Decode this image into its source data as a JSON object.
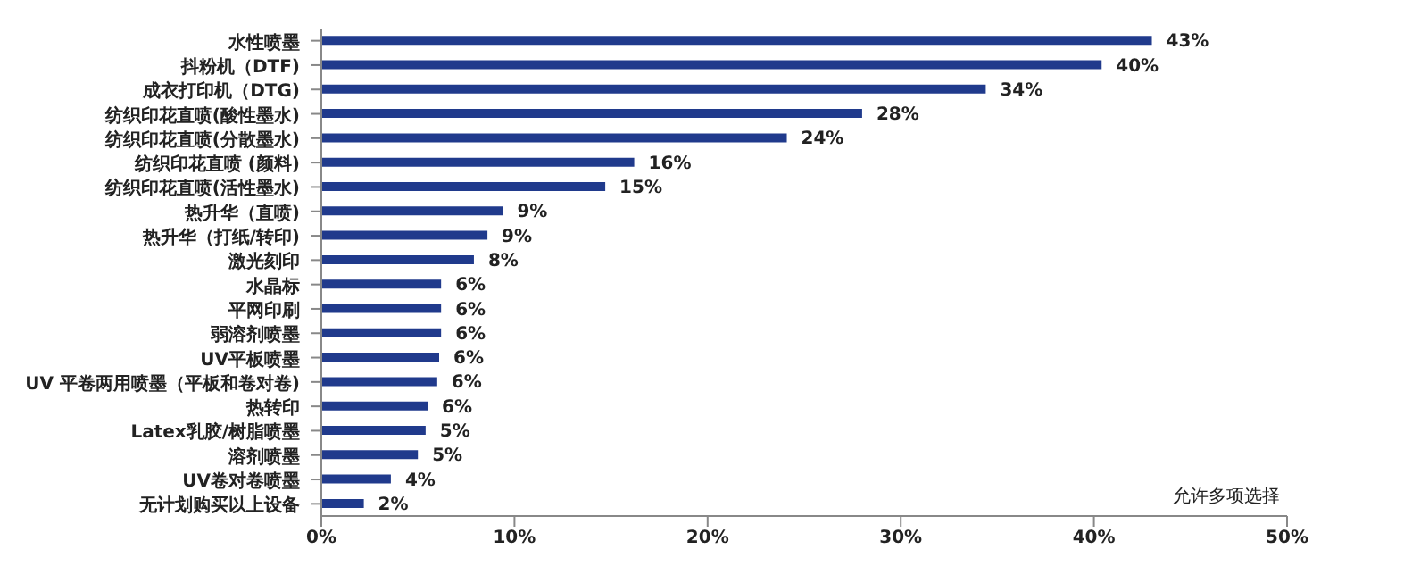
{
  "chart_data": {
    "type": "bar",
    "orientation": "horizontal",
    "categories": [
      "水性喷墨",
      "抖粉机（DTF)",
      "成衣打印机（DTG)",
      "纺织印花直喷(酸性墨水)",
      "纺织印花直喷(分散墨水)",
      "纺织印花直喷 (颜料)",
      "纺织印花直喷(活性墨水)",
      "热升华（直喷)",
      "热升华（打纸/转印)",
      "激光刻印",
      "水晶标",
      "平网印刷",
      "弱溶剂喷墨",
      "UV平板喷墨",
      "UV 平卷两用喷墨（平板和卷对卷)",
      "热转印",
      "Latex乳胶/树脂喷墨",
      "溶剂喷墨",
      "UV卷对卷喷墨",
      "无计划购买以上设备"
    ],
    "values": [
      43.0,
      40.4,
      34.4,
      28.0,
      24.1,
      16.2,
      14.7,
      9.4,
      8.6,
      7.9,
      6.2,
      6.2,
      6.2,
      6.1,
      6.0,
      5.5,
      5.4,
      5.0,
      3.6,
      2.2
    ],
    "value_labels": [
      "43%",
      "40%",
      "34%",
      "28%",
      "24%",
      "16%",
      "15%",
      "9%",
      "9%",
      "8%",
      "6%",
      "6%",
      "6%",
      "6%",
      "6%",
      "6%",
      "5%",
      "5%",
      "4%",
      "2%"
    ],
    "color": "#203a8c",
    "xlim": [
      0,
      50
    ],
    "xticks": [
      {
        "value": 0,
        "label": "0%"
      },
      {
        "value": 10,
        "label": "10%"
      },
      {
        "value": 20,
        "label": "20%"
      },
      {
        "value": 30,
        "label": "30%"
      },
      {
        "value": 40,
        "label": "40%"
      },
      {
        "value": 50,
        "label": "50%"
      }
    ],
    "annotations": [
      "允许多项选择"
    ]
  }
}
